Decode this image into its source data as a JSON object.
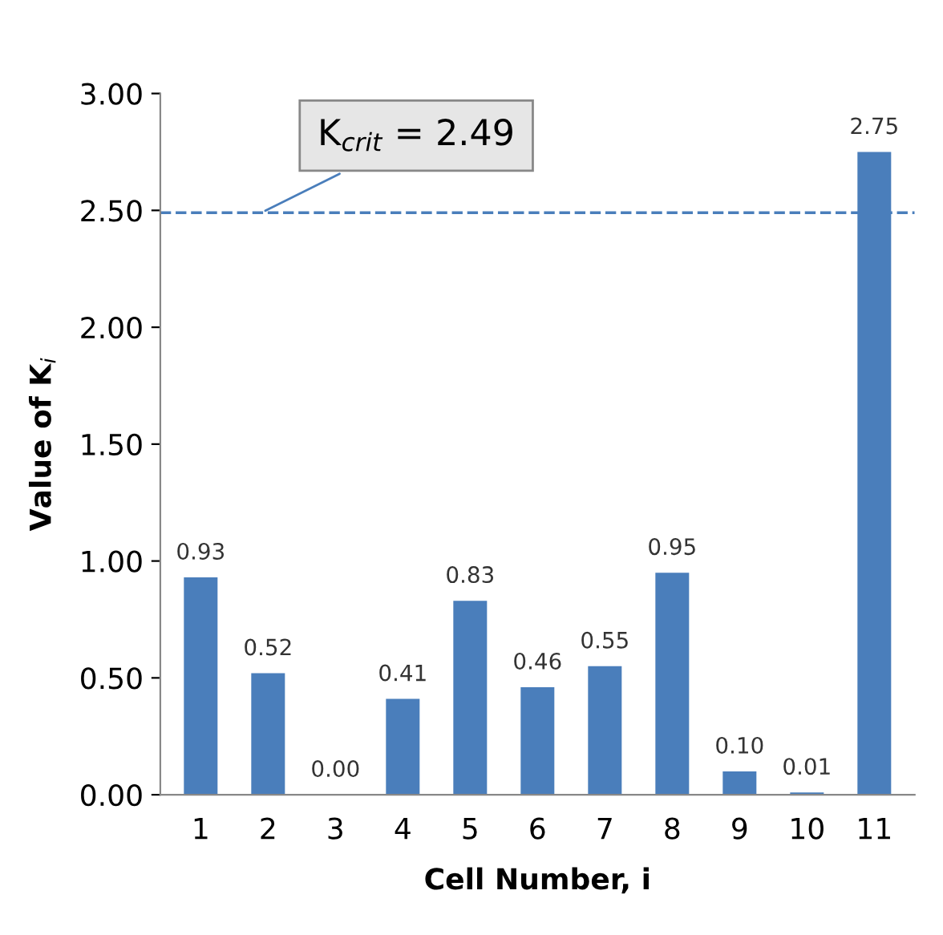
{
  "chart_data": {
    "type": "bar",
    "xlabel": "Cell Number, i",
    "ylabel": "Value of K$_{i}$",
    "categories": [
      "1",
      "2",
      "3",
      "4",
      "5",
      "6",
      "7",
      "8",
      "9",
      "10",
      "11"
    ],
    "values": [
      0.93,
      0.52,
      0.0,
      0.41,
      0.83,
      0.46,
      0.55,
      0.95,
      0.1,
      0.01,
      2.75
    ],
    "value_labels": [
      "0.93",
      "0.52",
      "0.00",
      "0.41",
      "0.83",
      "0.46",
      "0.55",
      "0.95",
      "0.10",
      "0.01",
      "2.75"
    ],
    "color": "#4a7ebb",
    "ylim": [
      0,
      3
    ],
    "yticks": [
      {
        "value": 0,
        "label": "0.00"
      },
      {
        "value": 0.5,
        "label": "0.50"
      },
      {
        "value": 1,
        "label": "1.00"
      },
      {
        "value": 1.5,
        "label": "1.50"
      },
      {
        "value": 2,
        "label": "2.00"
      },
      {
        "value": 2.5,
        "label": "2.50"
      },
      {
        "value": 3,
        "label": "3.00"
      }
    ],
    "ref_lines": [
      {
        "axis": "y",
        "value": 2.49,
        "label": "K$_{crit}$ = 2.49",
        "color": "#4a7ebb",
        "line_style": "dashed"
      }
    ],
    "grid": false
  }
}
